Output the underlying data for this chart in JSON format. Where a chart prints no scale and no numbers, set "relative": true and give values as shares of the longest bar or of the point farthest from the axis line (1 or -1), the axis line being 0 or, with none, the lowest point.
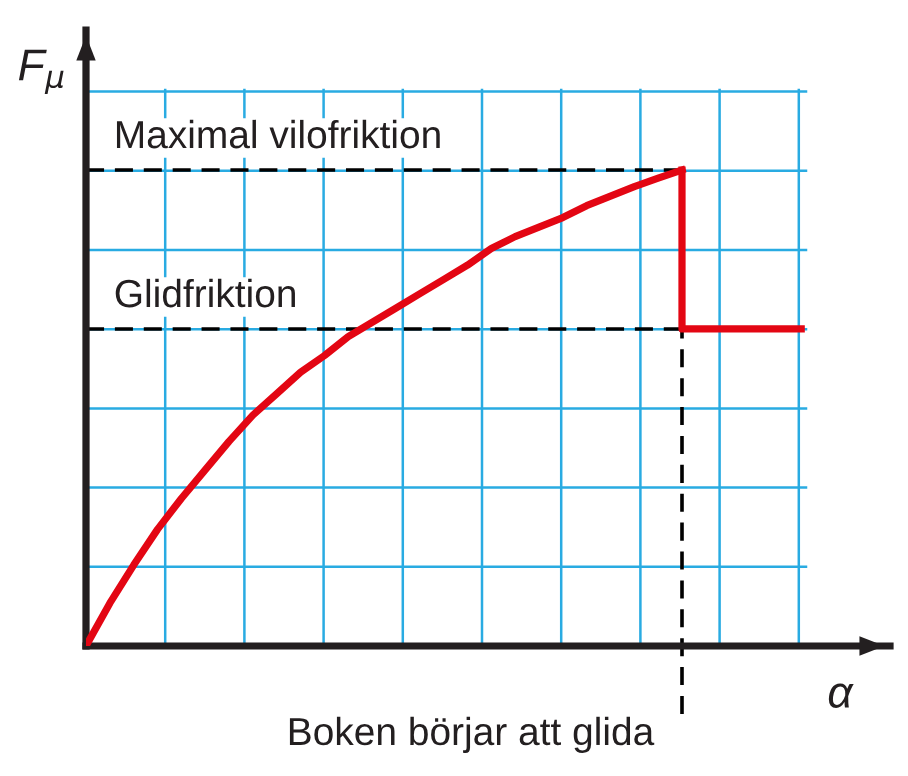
{
  "chart_data": {
    "type": "line",
    "relative": true,
    "ylabel": "F$_{μ}$",
    "xlabel": "α",
    "categories": [
      null,
      null,
      null,
      null,
      null,
      null,
      null,
      null,
      null,
      null,
      null,
      null,
      null,
      null,
      null,
      null,
      null,
      null,
      null,
      null,
      null,
      null,
      null,
      null,
      null,
      null,
      null,
      null,
      null,
      null,
      null
    ],
    "series": [
      {
        "color": "#e30613",
        "values": [
          0,
          0.09,
          0.17,
          0.245,
          0.31,
          0.37,
          0.43,
          0.485,
          0.53,
          0.575,
          0.61,
          0.65,
          0.68,
          0.71,
          0.74,
          0.77,
          0.8,
          0.835,
          0.86,
          0.88,
          0.9,
          0.925,
          0.945,
          0.965,
          0.983,
          1,
          null,
          null,
          null,
          null,
          null
        ]
      },
      {
        "type": "step",
        "color": "#e30613",
        "values": [
          null,
          null,
          null,
          null,
          null,
          null,
          null,
          null,
          null,
          null,
          null,
          null,
          null,
          null,
          null,
          null,
          null,
          null,
          null,
          null,
          null,
          null,
          null,
          null,
          null,
          1,
          0.666,
          0.666,
          0.666,
          0.666,
          0.666
        ]
      }
    ],
    "ref_lines": [
      {
        "axis": "y",
        "value": 1,
        "label": "Maximal vilofriktion",
        "color": "#000000",
        "line_style": "dashed"
      },
      {
        "axis": "y",
        "value": 0.666,
        "label": "Glidfriktion",
        "color": "#000000",
        "line_style": "dashed"
      }
    ],
    "annotations": [
      "Boken börjar att glida"
    ],
    "grid": true,
    "legend": false
  }
}
